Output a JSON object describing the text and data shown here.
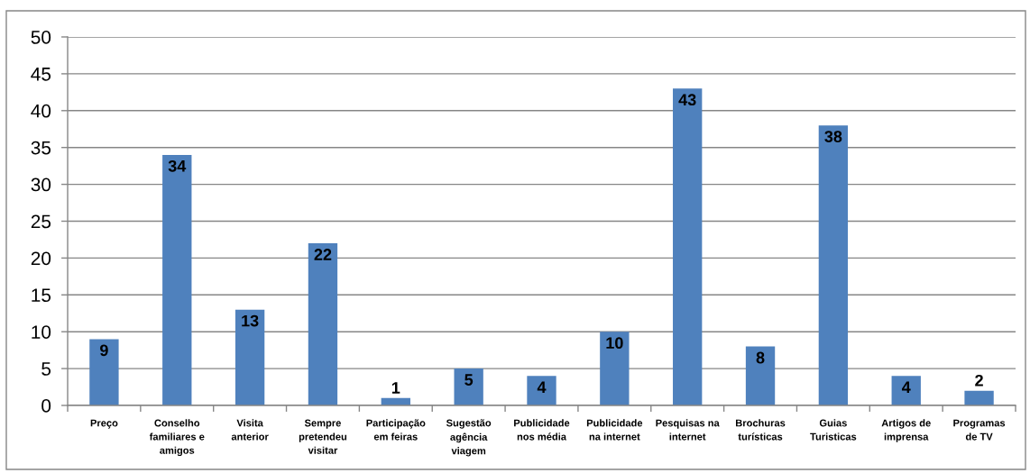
{
  "chart_data": {
    "type": "bar",
    "categories": [
      "Preço",
      "Conselho familiares e amigos",
      "Visita anterior",
      "Sempre pretendeu visitar",
      "Participação em feiras",
      "Sugestão agência viagem",
      "Publicidade nos média",
      "Publicidade na internet",
      "Pesquisas na internet",
      "Brochuras turísticas",
      "Guias Turisticas",
      "Artigos de imprensa",
      "Programas de TV"
    ],
    "values": [
      9,
      34,
      13,
      22,
      1,
      5,
      4,
      10,
      43,
      8,
      38,
      4,
      2
    ],
    "color": "#4f81bd",
    "ylim": [
      0,
      50
    ],
    "yticks": [
      0,
      5,
      10,
      15,
      20,
      25,
      30,
      35,
      40,
      45,
      50
    ],
    "grid": "y",
    "data_labels": true
  }
}
